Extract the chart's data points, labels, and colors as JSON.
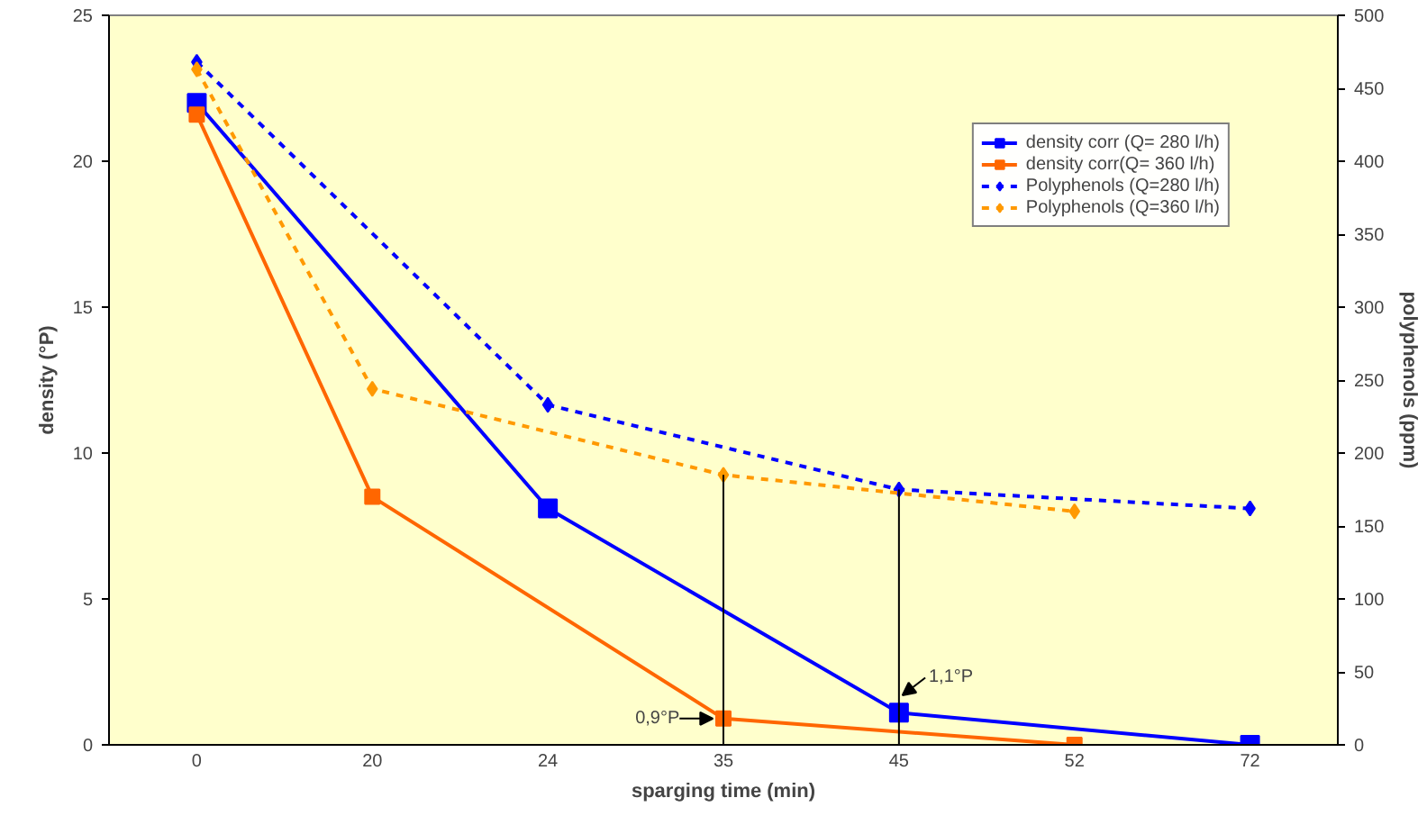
{
  "chart_data": {
    "type": "line",
    "xlabel": "sparging time (min)",
    "ylabel": "density (°P)",
    "y2label": "polyphenols (ppm)",
    "categories": [
      "0",
      "20",
      "24",
      "35",
      "45",
      "52",
      "72"
    ],
    "series": [
      {
        "name": "density corr (Q= 280 l/h)",
        "color": "#0000ff",
        "marker": "square",
        "line_style": "solid",
        "values": [
          22,
          null,
          8.1,
          null,
          1.1,
          null,
          0
        ]
      },
      {
        "name": "density corr(Q= 360 l/h)",
        "color": "#ff6600",
        "marker": "square",
        "line_style": "solid",
        "values": [
          21.6,
          8.5,
          null,
          0.9,
          null,
          0,
          null
        ]
      },
      {
        "name": "Polyphenols (Q=280 l/h)",
        "color": "#0000ff",
        "marker": "diamond",
        "line_style": "dashed",
        "axis": "y2",
        "values": [
          468,
          null,
          233,
          null,
          175,
          null,
          162
        ]
      },
      {
        "name": "Polyphenols (Q=360 l/h)",
        "color": "#ff9900",
        "marker": "diamond",
        "line_style": "dashed",
        "axis": "y2",
        "values": [
          463,
          244,
          null,
          185,
          null,
          160,
          null
        ]
      }
    ],
    "ylim": [
      0,
      25
    ],
    "yticks": [
      0,
      5,
      10,
      15,
      20,
      25
    ],
    "y2lim": [
      0,
      500
    ],
    "y2ticks": [
      0,
      50,
      100,
      150,
      200,
      250,
      300,
      350,
      400,
      450,
      500
    ],
    "ref_lines": [
      {
        "axis": "x",
        "value": "35",
        "color": "#000000"
      },
      {
        "axis": "x",
        "value": "45",
        "color": "#000000"
      }
    ],
    "annotations": [
      {
        "text": "0,9°P",
        "x": "35",
        "y": 0.9
      },
      {
        "text": "1,1°P",
        "x": "45",
        "y": 1.1
      }
    ],
    "grid": false,
    "legend": "top right"
  }
}
